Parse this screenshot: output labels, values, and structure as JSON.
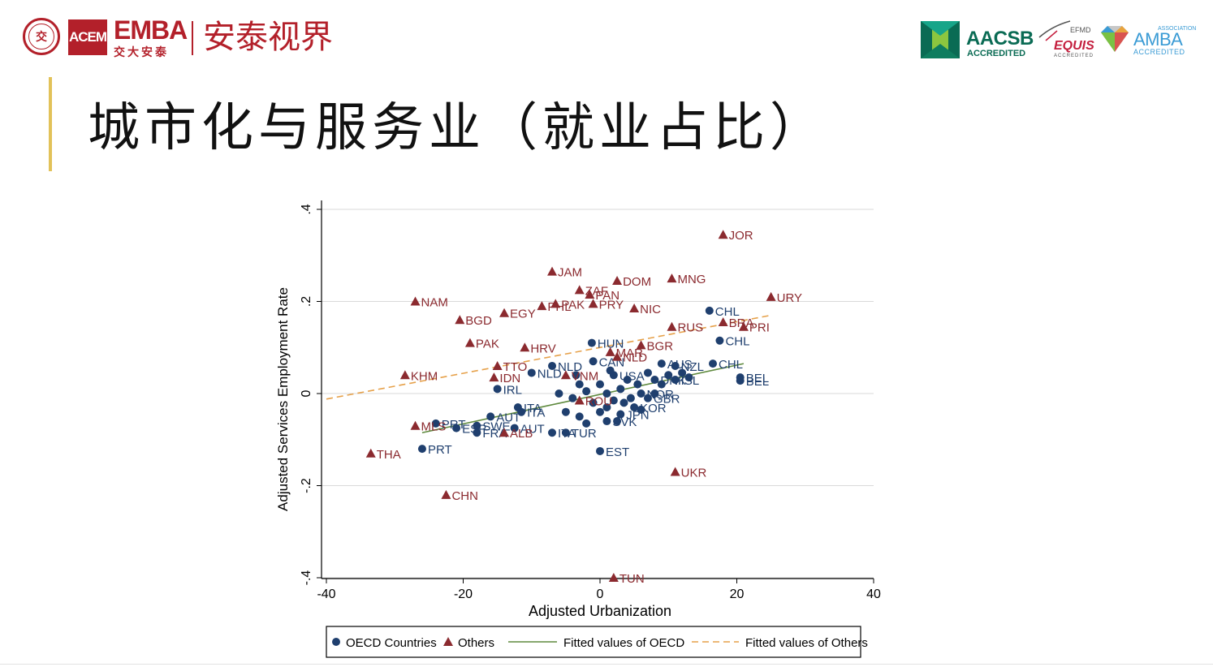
{
  "header": {
    "seal_char": "交",
    "acem_logo": "ACEM",
    "emba_label": "EMBA",
    "emba_sub": "交大安泰",
    "brand": "安泰视界",
    "aacsb": {
      "name": "AACSB",
      "sub": "ACCREDITED"
    },
    "equis": {
      "efmd": "EFMD",
      "name": "EQUIS",
      "sub": "ACCREDITED"
    },
    "amba": {
      "assoc": "ASSOCIATION",
      "name": "AMBA",
      "sub": "ACCREDITED"
    }
  },
  "slide": {
    "title": "城市化与服务业（就业占比）"
  },
  "colors": {
    "oecd": "#1f3f6e",
    "others": "#8b2a2f",
    "fit_oecd": "#5f8a3e",
    "fit_others": "#e6a14a",
    "grid": "#d9d9d9",
    "brand_red": "#b3202a"
  },
  "chart_data": {
    "type": "scatter",
    "xlabel": "Adjusted Urbanization",
    "ylabel": "Adjusted Services Employment Rate",
    "xlim": [
      -40,
      40
    ],
    "ylim": [
      -0.4,
      0.4
    ],
    "xticks": [
      -40,
      -20,
      0,
      20,
      40
    ],
    "xtick_labels": [
      "-40",
      "-20",
      "0",
      "20",
      "40"
    ],
    "yticks": [
      -0.4,
      -0.2,
      0,
      0.2,
      0.4
    ],
    "ytick_labels": [
      "-.4",
      "-.2",
      "0",
      ".2",
      ".4"
    ],
    "grid": true,
    "legend": {
      "position": "bottom",
      "entries": [
        "OECD Countries",
        "Others",
        "Fitted values of OECD",
        "Fitted values of Others"
      ]
    },
    "series": [
      {
        "name": "OECD Countries",
        "marker": "circle",
        "points": [
          {
            "x": 16,
            "y": 0.18,
            "label": "CHL"
          },
          {
            "x": 17.5,
            "y": 0.115,
            "label": "CHL"
          },
          {
            "x": 16.5,
            "y": 0.065,
            "label": "CHL"
          },
          {
            "x": -1.2,
            "y": 0.11,
            "label": "HUN"
          },
          {
            "x": -10,
            "y": 0.045,
            "label": "NLD"
          },
          {
            "x": -7,
            "y": 0.06,
            "label": "NLD"
          },
          {
            "x": -15,
            "y": 0.01,
            "label": "IRL"
          },
          {
            "x": -12,
            "y": -0.03,
            "label": "ITA"
          },
          {
            "x": -11.5,
            "y": -0.04,
            "label": "ITA"
          },
          {
            "x": -16,
            "y": -0.05,
            "label": "AUT"
          },
          {
            "x": -12.5,
            "y": -0.075,
            "label": "AUT"
          },
          {
            "x": -18,
            "y": -0.07,
            "label": "SWE"
          },
          {
            "x": -24,
            "y": -0.065,
            "label": "PRT"
          },
          {
            "x": -26,
            "y": -0.12,
            "label": "PRT"
          },
          {
            "x": -21,
            "y": -0.075,
            "label": "ESP"
          },
          {
            "x": -18,
            "y": -0.085,
            "label": "FRA"
          },
          {
            "x": -7,
            "y": -0.085,
            "label": "ITA"
          },
          {
            "x": -5,
            "y": -0.085,
            "label": "TUR"
          },
          {
            "x": 0,
            "y": -0.125,
            "label": "EST"
          },
          {
            "x": 20.5,
            "y": 0.035,
            "label": "BEL"
          },
          {
            "x": 20.5,
            "y": 0.028,
            "label": "BEL"
          },
          {
            "x": 11,
            "y": 0.03,
            "label": "ISL"
          },
          {
            "x": 11,
            "y": 0.06,
            "label": "NZL"
          },
          {
            "x": 9,
            "y": 0.065,
            "label": "AUS"
          },
          {
            "x": 8,
            "y": 0.03,
            "label": "DNK"
          },
          {
            "x": 6,
            "y": 0.0,
            "label": "NOR"
          },
          {
            "x": 7,
            "y": -0.01,
            "label": "GBR"
          },
          {
            "x": 5,
            "y": -0.03,
            "label": "KOR"
          },
          {
            "x": 3,
            "y": -0.045,
            "label": "JPN"
          },
          {
            "x": 1,
            "y": -0.06,
            "label": "SVK"
          },
          {
            "x": -1,
            "y": 0.07,
            "label": "CAN"
          },
          {
            "x": 2,
            "y": 0.04,
            "label": "USA"
          },
          {
            "x": -3,
            "y": 0.02,
            "label": ""
          },
          {
            "x": -2,
            "y": 0.005,
            "label": ""
          },
          {
            "x": -4,
            "y": -0.01,
            "label": ""
          },
          {
            "x": -1,
            "y": -0.02,
            "label": ""
          },
          {
            "x": 0,
            "y": 0.02,
            "label": ""
          },
          {
            "x": 1,
            "y": 0.0,
            "label": ""
          },
          {
            "x": 2,
            "y": -0.015,
            "label": ""
          },
          {
            "x": 3,
            "y": 0.01,
            "label": ""
          },
          {
            "x": 4,
            "y": 0.03,
            "label": ""
          },
          {
            "x": 4.5,
            "y": -0.01,
            "label": ""
          },
          {
            "x": 5.5,
            "y": 0.02,
            "label": ""
          },
          {
            "x": 6,
            "y": -0.035,
            "label": ""
          },
          {
            "x": 7,
            "y": 0.045,
            "label": ""
          },
          {
            "x": 8,
            "y": 0.0,
            "label": ""
          },
          {
            "x": 9,
            "y": 0.02,
            "label": ""
          },
          {
            "x": 10,
            "y": 0.04,
            "label": ""
          },
          {
            "x": 12,
            "y": 0.045,
            "label": ""
          },
          {
            "x": 13,
            "y": 0.035,
            "label": ""
          },
          {
            "x": -5,
            "y": -0.04,
            "label": ""
          },
          {
            "x": -3,
            "y": -0.05,
            "label": ""
          },
          {
            "x": -2,
            "y": -0.065,
            "label": ""
          },
          {
            "x": 0,
            "y": -0.04,
            "label": ""
          },
          {
            "x": 1,
            "y": -0.03,
            "label": ""
          },
          {
            "x": 2.5,
            "y": -0.06,
            "label": ""
          },
          {
            "x": 3.5,
            "y": -0.02,
            "label": ""
          },
          {
            "x": -6,
            "y": 0.0,
            "label": ""
          },
          {
            "x": -3.5,
            "y": 0.04,
            "label": ""
          },
          {
            "x": 1.5,
            "y": 0.05,
            "label": ""
          }
        ]
      },
      {
        "name": "Others",
        "marker": "triangle",
        "points": [
          {
            "x": 18,
            "y": 0.345,
            "label": "JOR"
          },
          {
            "x": -7,
            "y": 0.265,
            "label": "JAM"
          },
          {
            "x": 2.5,
            "y": 0.245,
            "label": "DOM"
          },
          {
            "x": 10.5,
            "y": 0.25,
            "label": "MNG"
          },
          {
            "x": 25,
            "y": 0.21,
            "label": "URY"
          },
          {
            "x": -27,
            "y": 0.2,
            "label": "NAM"
          },
          {
            "x": -3,
            "y": 0.225,
            "label": "ZAF"
          },
          {
            "x": -1.5,
            "y": 0.215,
            "label": "PAN"
          },
          {
            "x": -8.5,
            "y": 0.19,
            "label": "PHL"
          },
          {
            "x": -6.5,
            "y": 0.195,
            "label": "PAK"
          },
          {
            "x": -1,
            "y": 0.195,
            "label": "PRY"
          },
          {
            "x": 5,
            "y": 0.185,
            "label": "NIC"
          },
          {
            "x": -14,
            "y": 0.175,
            "label": "EGY"
          },
          {
            "x": -20.5,
            "y": 0.16,
            "label": "BGD"
          },
          {
            "x": 10.5,
            "y": 0.145,
            "label": "RUS"
          },
          {
            "x": 18,
            "y": 0.155,
            "label": "BRA"
          },
          {
            "x": 21,
            "y": 0.145,
            "label": "PRI"
          },
          {
            "x": -19,
            "y": 0.11,
            "label": "PAK"
          },
          {
            "x": -11,
            "y": 0.1,
            "label": "HRV"
          },
          {
            "x": 6,
            "y": 0.105,
            "label": "BGR"
          },
          {
            "x": 1.5,
            "y": 0.09,
            "label": "MAR"
          },
          {
            "x": 2.5,
            "y": 0.08,
            "label": "NLD"
          },
          {
            "x": -15,
            "y": 0.06,
            "label": "TTO"
          },
          {
            "x": -28.5,
            "y": 0.04,
            "label": "KHM"
          },
          {
            "x": -15.5,
            "y": 0.035,
            "label": "IDN"
          },
          {
            "x": -5,
            "y": 0.04,
            "label": "VNM"
          },
          {
            "x": -3,
            "y": -0.015,
            "label": "ROU"
          },
          {
            "x": -27,
            "y": -0.07,
            "label": "MLS"
          },
          {
            "x": -14,
            "y": -0.085,
            "label": "ALB"
          },
          {
            "x": -33.5,
            "y": -0.13,
            "label": "THA"
          },
          {
            "x": 11,
            "y": -0.17,
            "label": "UKR"
          },
          {
            "x": -22.5,
            "y": -0.22,
            "label": "CHN"
          },
          {
            "x": 2,
            "y": -0.4,
            "label": "TUN"
          }
        ]
      }
    ],
    "fitted": [
      {
        "name": "Fitted values of OECD",
        "x": [
          -26,
          21
        ],
        "y": [
          -0.085,
          0.065
        ]
      },
      {
        "name": "Fitted values of Others",
        "x": [
          -40,
          25
        ],
        "y": [
          -0.012,
          0.17
        ]
      }
    ]
  }
}
